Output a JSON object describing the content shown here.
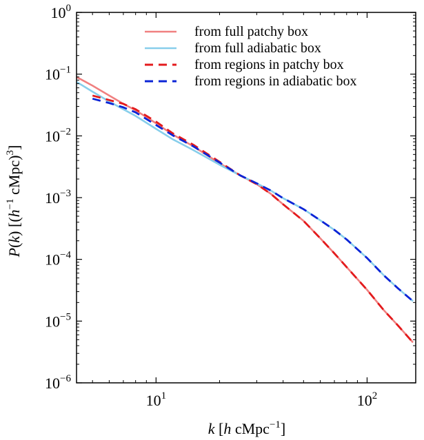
{
  "chart_data": {
    "type": "line",
    "xscale": "log",
    "yscale": "log",
    "xlim": [
      4.2,
      170
    ],
    "ylim": [
      1e-06,
      1
    ],
    "xlabel": {
      "base": "k [",
      "italic_h": "h",
      "rest": " cMpc",
      "sup": "−1",
      "end": "]"
    },
    "ylabel": {
      "italic_P": "P",
      "paren": "(",
      "italic_k": "k",
      "mid": ") [(",
      "italic_h": "h",
      "sup1": "−1",
      "rest": " cMpc)",
      "sup3": "3",
      "end": "]"
    },
    "x_ticks": [
      {
        "value": 10,
        "base": "10",
        "exp": "1"
      },
      {
        "value": 100,
        "base": "10",
        "exp": "2"
      }
    ],
    "y_ticks": [
      {
        "value": 1,
        "base": "10",
        "exp": "0"
      },
      {
        "value": 0.1,
        "base": "10",
        "exp": "−1"
      },
      {
        "value": 0.01,
        "base": "10",
        "exp": "−2"
      },
      {
        "value": 0.001,
        "base": "10",
        "exp": "−3"
      },
      {
        "value": 0.0001,
        "base": "10",
        "exp": "−4"
      },
      {
        "value": 1e-05,
        "base": "10",
        "exp": "−5"
      },
      {
        "value": 1e-06,
        "base": "10",
        "exp": "−6"
      }
    ],
    "legend_position": "top-right",
    "series": [
      {
        "name": "from full patchy box",
        "color": "#f08080",
        "style": "solid",
        "x": [
          4.2,
          5,
          6,
          7,
          8,
          10,
          12,
          15,
          20,
          25,
          30,
          35,
          40,
          50,
          60,
          70,
          80,
          100,
          120,
          140,
          165
        ],
        "y": [
          0.09,
          0.065,
          0.045,
          0.033,
          0.026,
          0.016,
          0.0105,
          0.0068,
          0.0036,
          0.0023,
          0.00165,
          0.00115,
          0.00078,
          0.00042,
          0.00022,
          0.000125,
          7.5e-05,
          3.2e-05,
          1.5e-05,
          8.5e-06,
          4.5e-06
        ]
      },
      {
        "name": "from full adiabatic box",
        "color": "#87ceeb",
        "style": "solid",
        "x": [
          4.2,
          5,
          6,
          7,
          8,
          10,
          12,
          15,
          20,
          25,
          30,
          35,
          40,
          50,
          60,
          70,
          80,
          100,
          120,
          140,
          165
        ],
        "y": [
          0.075,
          0.052,
          0.036,
          0.027,
          0.021,
          0.013,
          0.0088,
          0.0059,
          0.0034,
          0.0023,
          0.0017,
          0.0013,
          0.00098,
          0.00065,
          0.00043,
          0.0003,
          0.00021,
          0.000105,
          5.5e-05,
          3.4e-05,
          2.1e-05
        ]
      },
      {
        "name": "from regions in patchy box",
        "color": "#e31a1c",
        "style": "dashed",
        "x": [
          5,
          6,
          7,
          8,
          10,
          12,
          15,
          20,
          25,
          30,
          35,
          40,
          50,
          60,
          70,
          80,
          100,
          120,
          140,
          165
        ],
        "y": [
          0.045,
          0.038,
          0.033,
          0.027,
          0.017,
          0.011,
          0.0072,
          0.0038,
          0.0023,
          0.00165,
          0.00115,
          0.00078,
          0.00042,
          0.00022,
          0.000125,
          7.5e-05,
          3.2e-05,
          1.5e-05,
          8.5e-06,
          4.5e-06
        ]
      },
      {
        "name": "from regions in adiabatic box",
        "color": "#0b24d6",
        "style": "dashed",
        "x": [
          5,
          6,
          7,
          8,
          10,
          12,
          15,
          20,
          25,
          30,
          35,
          40,
          50,
          60,
          70,
          80,
          100,
          120,
          140,
          165
        ],
        "y": [
          0.04,
          0.034,
          0.029,
          0.024,
          0.015,
          0.0102,
          0.0068,
          0.0037,
          0.0023,
          0.0017,
          0.0013,
          0.00098,
          0.00065,
          0.00043,
          0.0003,
          0.00021,
          0.000105,
          5.5e-05,
          3.4e-05,
          2.1e-05
        ]
      }
    ]
  }
}
